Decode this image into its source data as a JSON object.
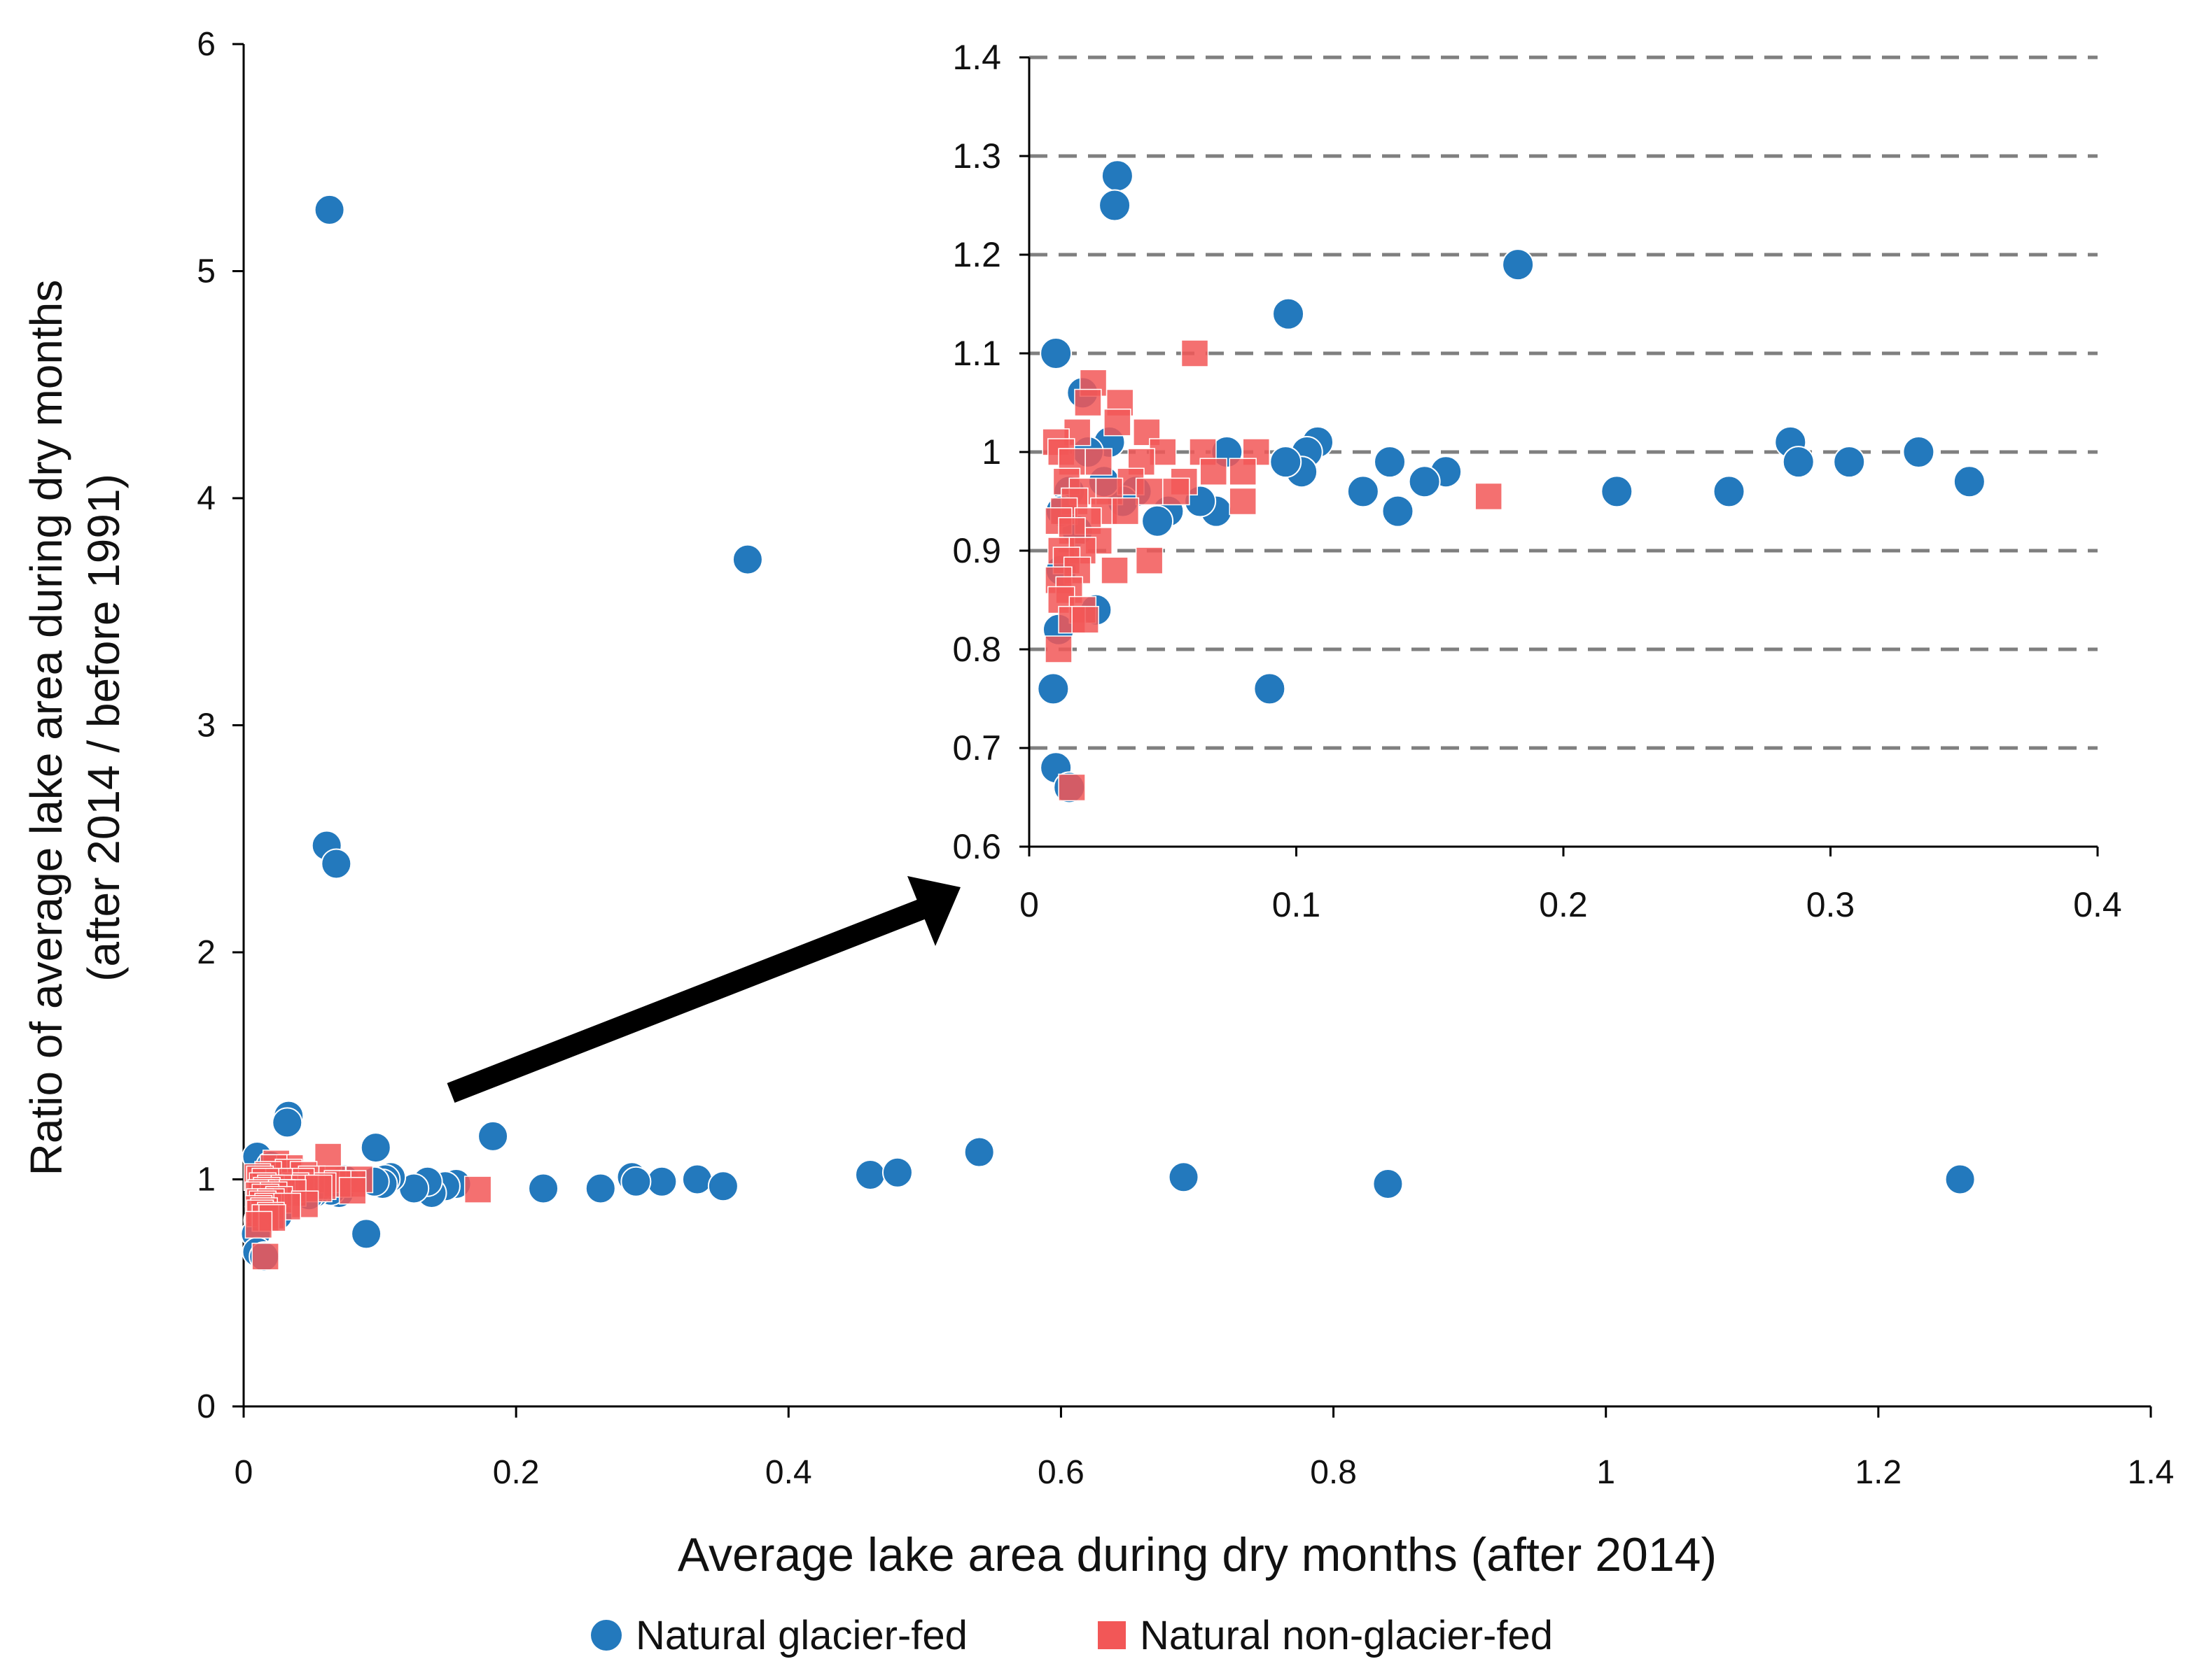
{
  "chart_data": [
    {
      "id": "main",
      "type": "scatter",
      "xlabel": "Average lake area during dry months  (after 2014)",
      "ylabel_line1": "Ratio of average lake area during dry months",
      "ylabel_line2": "(after 2014 / before 1991)",
      "xlim": [
        0,
        1.4
      ],
      "ylim": [
        0,
        6
      ],
      "xticks": [
        0,
        0.2,
        0.4,
        0.6,
        0.8,
        1,
        1.2,
        1.4
      ],
      "xtick_labels": [
        "0",
        "0.2",
        "0.4",
        "0.6",
        "0.8",
        "1",
        "1.2",
        "1.4"
      ],
      "yticks": [
        0,
        1,
        2,
        3,
        4,
        5,
        6
      ],
      "ytick_labels": [
        "0",
        "1",
        "2",
        "3",
        "4",
        "5",
        "6"
      ],
      "grid": false,
      "legend_position": "bottom-center",
      "series": [
        {
          "name": "Natural glacier-fed",
          "marker": "circle",
          "color": "#2379BD",
          "points": [
            [
              0.063,
              5.27
            ],
            [
              0.37,
              3.73
            ],
            [
              0.061,
              2.47
            ],
            [
              0.068,
              2.39
            ],
            [
              0.033,
              1.28
            ],
            [
              0.032,
              1.25
            ],
            [
              0.183,
              1.19
            ],
            [
              0.097,
              1.14
            ],
            [
              0.01,
              1.1
            ],
            [
              0.02,
              1.06
            ],
            [
              0.54,
              1.12
            ],
            [
              0.46,
              1.02
            ],
            [
              0.48,
              1.03
            ],
            [
              0.69,
              1.01
            ],
            [
              0.84,
              0.98
            ],
            [
              1.26,
              1.0
            ],
            [
              0.333,
              1.0
            ],
            [
              0.307,
              0.99
            ],
            [
              0.285,
              1.01
            ],
            [
              0.288,
              0.99
            ],
            [
              0.352,
              0.97
            ],
            [
              0.262,
              0.96
            ],
            [
              0.22,
              0.96
            ],
            [
              0.156,
              0.98
            ],
            [
              0.148,
              0.97
            ],
            [
              0.138,
              0.94
            ],
            [
              0.135,
              0.99
            ],
            [
              0.125,
              0.96
            ],
            [
              0.108,
              1.01
            ],
            [
              0.104,
              1.0
            ],
            [
              0.102,
              0.98
            ],
            [
              0.096,
              0.99
            ],
            [
              0.09,
              0.76
            ],
            [
              0.074,
              1.0
            ],
            [
              0.07,
              0.94
            ],
            [
              0.064,
              0.95
            ],
            [
              0.052,
              0.94
            ],
            [
              0.048,
              0.93
            ],
            [
              0.04,
              0.96
            ],
            [
              0.035,
              0.95
            ],
            [
              0.03,
              1.01
            ],
            [
              0.028,
              0.97
            ],
            [
              0.025,
              0.84
            ],
            [
              0.015,
              0.96
            ],
            [
              0.012,
              0.88
            ],
            [
              0.011,
              0.82
            ],
            [
              0.009,
              0.76
            ],
            [
              0.01,
              0.68
            ],
            [
              0.015,
              0.66
            ],
            [
              0.018,
              0.92
            ],
            [
              0.022,
              1.0
            ],
            [
              0.012,
              0.94
            ]
          ]
        },
        {
          "name": "Natural non-glacier-fed",
          "marker": "square",
          "color": "#F25757",
          "points": [
            [
              0.062,
              1.1
            ],
            [
              0.024,
              1.07
            ],
            [
              0.034,
              1.05
            ],
            [
              0.022,
              1.05
            ],
            [
              0.033,
              1.03
            ],
            [
              0.044,
              1.02
            ],
            [
              0.018,
              1.02
            ],
            [
              0.01,
              1.01
            ],
            [
              0.012,
              1.0
            ],
            [
              0.05,
              1.0
            ],
            [
              0.065,
              1.0
            ],
            [
              0.085,
              1.0
            ],
            [
              0.08,
              0.98
            ],
            [
              0.069,
              0.98
            ],
            [
              0.058,
              0.97
            ],
            [
              0.042,
              0.99
            ],
            [
              0.038,
              0.97
            ],
            [
              0.026,
              0.99
            ],
            [
              0.016,
              0.99
            ],
            [
              0.014,
              0.97
            ],
            [
              0.02,
              0.96
            ],
            [
              0.03,
              0.96
            ],
            [
              0.045,
              0.96
            ],
            [
              0.055,
              0.96
            ],
            [
              0.172,
              0.955
            ],
            [
              0.08,
              0.95
            ],
            [
              0.017,
              0.95
            ],
            [
              0.013,
              0.94
            ],
            [
              0.028,
              0.94
            ],
            [
              0.036,
              0.94
            ],
            [
              0.011,
              0.93
            ],
            [
              0.022,
              0.93
            ],
            [
              0.016,
              0.92
            ],
            [
              0.026,
              0.91
            ],
            [
              0.012,
              0.9
            ],
            [
              0.02,
              0.9
            ],
            [
              0.045,
              0.89
            ],
            [
              0.014,
              0.89
            ],
            [
              0.018,
              0.88
            ],
            [
              0.032,
              0.88
            ],
            [
              0.011,
              0.87
            ],
            [
              0.015,
              0.86
            ],
            [
              0.012,
              0.85
            ],
            [
              0.02,
              0.84
            ],
            [
              0.016,
              0.83
            ],
            [
              0.021,
              0.83
            ],
            [
              0.011,
              0.8
            ],
            [
              0.016,
              0.66
            ]
          ]
        }
      ]
    },
    {
      "id": "inset",
      "type": "scatter",
      "xlim": [
        0,
        0.4
      ],
      "ylim": [
        0.6,
        1.4
      ],
      "xticks": [
        0,
        0.1,
        0.2,
        0.3,
        0.4
      ],
      "xtick_labels": [
        "0",
        "0.1",
        "0.2",
        "0.3",
        "0.4"
      ],
      "yticks": [
        0.6,
        0.7,
        0.8,
        0.9,
        1.0,
        1.1,
        1.2,
        1.3,
        1.4
      ],
      "ytick_labels": [
        "0.6",
        "0.7",
        "0.8",
        "0.9",
        "1",
        "1.1",
        "1.2",
        "1.3",
        "1.4"
      ],
      "grid": "dashed horizontal",
      "shows": "zoom of region x 0–0.4, y 0.6–1.4 of the main chart, same two series"
    }
  ],
  "legend": {
    "items": [
      {
        "label": "Natural glacier-fed",
        "marker": "circle",
        "color": "#2379BD"
      },
      {
        "label": "Natural non-glacier-fed",
        "marker": "square",
        "color": "#F25757"
      }
    ]
  }
}
